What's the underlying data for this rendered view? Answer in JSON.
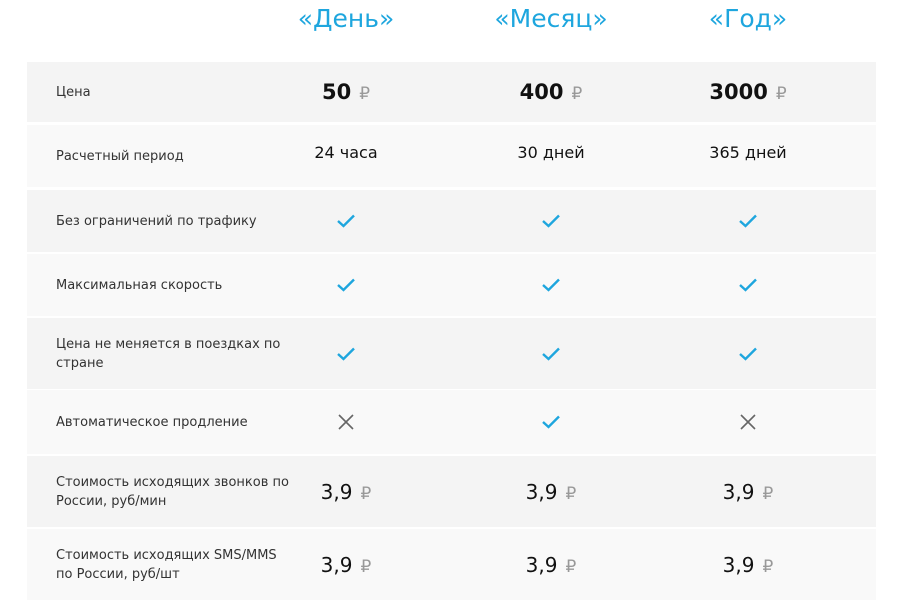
{
  "plans": [
    "«День»",
    "«Месяц»",
    "«Год»"
  ],
  "currency": "₽",
  "colors": {
    "accent": "#1ea6de",
    "row_dark": "#f4f4f4",
    "row_light": "#f9f9f9"
  },
  "rows": [
    {
      "label": "Цена",
      "type": "price",
      "values": [
        "50",
        "400",
        "3000"
      ]
    },
    {
      "label": "Расчетный период",
      "type": "text",
      "values": [
        "24 часа",
        "30 дней",
        "365 дней"
      ]
    },
    {
      "label": "Без ограничений по трафику",
      "type": "bool",
      "values": [
        true,
        true,
        true
      ]
    },
    {
      "label": "Максимальная скорость",
      "type": "bool",
      "values": [
        true,
        true,
        true
      ]
    },
    {
      "label": "Цена не меняется в поездках по стране",
      "type": "bool",
      "values": [
        true,
        true,
        true
      ]
    },
    {
      "label": "Автоматическое продление",
      "type": "bool",
      "values": [
        false,
        true,
        false
      ]
    },
    {
      "label": "Стоимость исходящих звонков по России, руб/мин",
      "type": "num",
      "values": [
        "3,9",
        "3,9",
        "3,9"
      ]
    },
    {
      "label": "Стоимость исходящих SMS/MMS по России, руб/шт",
      "type": "num",
      "values": [
        "3,9",
        "3,9",
        "3,9"
      ]
    }
  ]
}
